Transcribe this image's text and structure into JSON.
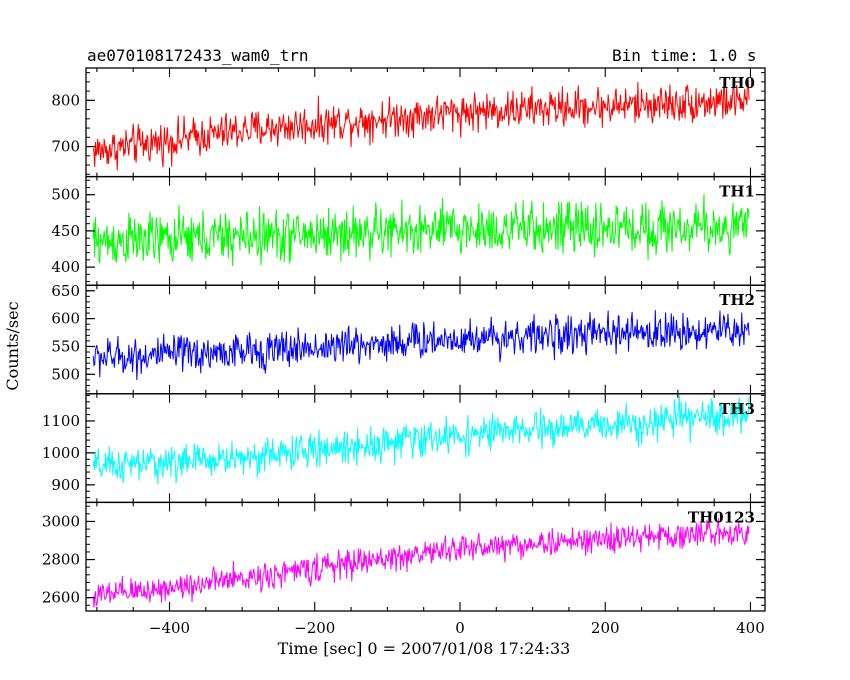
{
  "header": {
    "file_label": "ae070108172433_wam0_trn",
    "bin_label": "Bin time: 1.0 s"
  },
  "chart_data": {
    "type": "line",
    "xlabel": "Time [sec] 0 = 2007/01/08 17:24:33",
    "ylabel": "Counts/sec",
    "xlim": [
      -515,
      420
    ],
    "xticks": [
      -400,
      -200,
      0,
      200,
      400
    ],
    "x_range": [
      -505,
      398
    ],
    "panels": [
      {
        "name": "TH0",
        "color": "#ff0000",
        "ylim": [
          635,
          870
        ],
        "yticks": [
          700,
          800
        ],
        "trend": [
          [
            -505,
            690
          ],
          [
            -300,
            735
          ],
          [
            0,
            775
          ],
          [
            398,
            800
          ]
        ],
        "noise": 35
      },
      {
        "name": "TH1",
        "color": "#00ff00",
        "ylim": [
          375,
          525
        ],
        "yticks": [
          400,
          450,
          500
        ],
        "trend": [
          [
            -505,
            435
          ],
          [
            0,
            452
          ],
          [
            398,
            455
          ]
        ],
        "noise": 30
      },
      {
        "name": "TH2",
        "color": "#0000ff",
        "ylim": [
          465,
          660
        ],
        "yticks": [
          500,
          550,
          600,
          650
        ],
        "trend": [
          [
            -505,
            530
          ],
          [
            -300,
            540
          ],
          [
            0,
            565
          ],
          [
            398,
            580
          ]
        ],
        "noise": 28
      },
      {
        "name": "TH3",
        "color": "#00ffff",
        "ylim": [
          845,
          1185
        ],
        "yticks": [
          900,
          1000,
          1100
        ],
        "trend": [
          [
            -505,
            955
          ],
          [
            -300,
            985
          ],
          [
            0,
            1055
          ],
          [
            398,
            1120
          ]
        ],
        "noise": 45
      },
      {
        "name": "TH0123",
        "color": "#ff00ff",
        "ylim": [
          2530,
          3100
        ],
        "yticks": [
          2600,
          2800,
          3000
        ],
        "trend": [
          [
            -505,
            2605
          ],
          [
            -300,
            2700
          ],
          [
            0,
            2860
          ],
          [
            398,
            2950
          ]
        ],
        "noise": 60
      }
    ]
  }
}
